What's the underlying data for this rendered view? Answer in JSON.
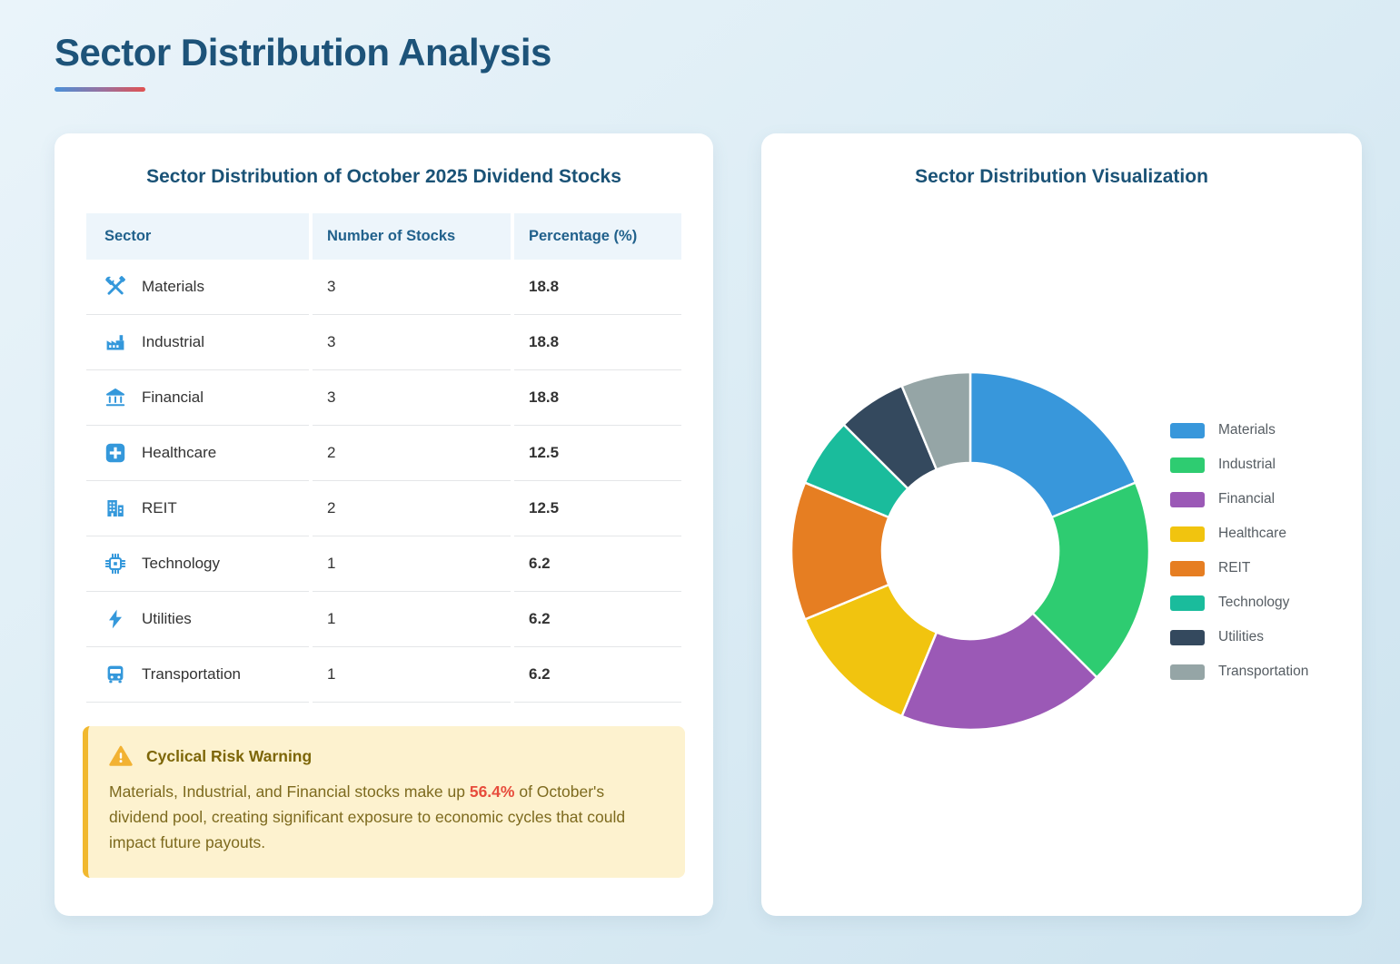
{
  "header": {
    "title": "Sector Distribution Analysis"
  },
  "table_card": {
    "title": "Sector Distribution of October 2025 Dividend Stocks",
    "columns": [
      "Sector",
      "Number of Stocks",
      "Percentage (%)"
    ],
    "rows": [
      {
        "sector": "Materials",
        "icon": "tools-icon",
        "stocks": "3",
        "percentage": "18.8"
      },
      {
        "sector": "Industrial",
        "icon": "factory-icon",
        "stocks": "3",
        "percentage": "18.8"
      },
      {
        "sector": "Financial",
        "icon": "bank-icon",
        "stocks": "3",
        "percentage": "18.8"
      },
      {
        "sector": "Healthcare",
        "icon": "medical-plus-icon",
        "stocks": "2",
        "percentage": "12.5"
      },
      {
        "sector": "REIT",
        "icon": "building-icon",
        "stocks": "2",
        "percentage": "12.5"
      },
      {
        "sector": "Technology",
        "icon": "chip-icon",
        "stocks": "1",
        "percentage": "6.2"
      },
      {
        "sector": "Utilities",
        "icon": "bolt-icon",
        "stocks": "1",
        "percentage": "6.2"
      },
      {
        "sector": "Transportation",
        "icon": "bus-icon",
        "stocks": "1",
        "percentage": "6.2"
      }
    ],
    "warning": {
      "icon": "warning-triangle-icon",
      "title": "Cyclical Risk Warning",
      "text_before": "Materials, Industrial, and Financial stocks make up ",
      "highlight": "56.4%",
      "text_after": " of October's dividend pool, creating significant exposure to economic cycles that could impact future payouts."
    }
  },
  "chart_card": {
    "title": "Sector Distribution Visualization"
  },
  "chart_data": {
    "type": "pie",
    "subtype": "donut",
    "title": "Sector Distribution Visualization",
    "categories": [
      "Materials",
      "Industrial",
      "Financial",
      "Healthcare",
      "REIT",
      "Technology",
      "Utilities",
      "Transportation"
    ],
    "values": [
      3,
      3,
      3,
      2,
      2,
      1,
      1,
      1
    ],
    "percentages": [
      18.8,
      18.8,
      18.8,
      12.5,
      12.5,
      6.2,
      6.2,
      6.2
    ],
    "colors": [
      "#3897db",
      "#2ecc71",
      "#9b59b6",
      "#f1c40f",
      "#e67e22",
      "#1abc9c",
      "#34495e",
      "#95a5a6"
    ],
    "start_angle_deg": 0,
    "direction": "clockwise",
    "donut_hole_ratio": 0.49,
    "legend_position": "right"
  },
  "colors": {
    "accent_blue": "#3498db",
    "heading": "#1d5379",
    "warning_bg": "#fdf2cf",
    "warning_border": "#f1b82e",
    "warning_text": "#7d6a1e",
    "highlight_red": "#e74c3c"
  }
}
